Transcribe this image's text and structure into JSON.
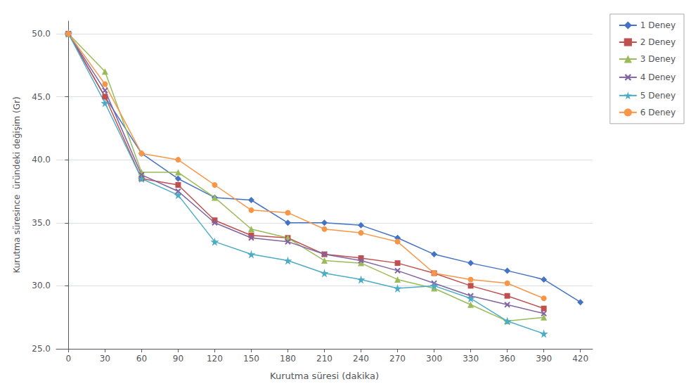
{
  "chart_data": {
    "type": "line",
    "xlabel": "Kurutma süresi (dakika)",
    "ylabel": "Kurutma süresince  üründeki değişim (Gr)",
    "x": [
      0,
      30,
      60,
      90,
      120,
      150,
      180,
      210,
      240,
      270,
      300,
      330,
      360,
      390,
      420
    ],
    "series": [
      {
        "name": "1 Deney",
        "color": "#4472C4",
        "marker": "diamond",
        "values": [
          50.0,
          45.0,
          40.5,
          38.5,
          37.0,
          36.8,
          35.0,
          35.0,
          34.8,
          33.8,
          32.5,
          31.8,
          31.2,
          30.5,
          28.7
        ]
      },
      {
        "name": "2 Deney",
        "color": "#C0504D",
        "marker": "square",
        "values": [
          50.0,
          45.0,
          38.5,
          38.0,
          35.2,
          34.0,
          33.8,
          32.5,
          32.2,
          31.8,
          31.0,
          30.0,
          29.2,
          28.2,
          null
        ]
      },
      {
        "name": "3 Deney",
        "color": "#9BBB59",
        "marker": "triangle",
        "values": [
          50.0,
          47.0,
          39.0,
          39.0,
          37.0,
          34.5,
          33.8,
          32.0,
          31.8,
          30.5,
          29.8,
          28.5,
          27.2,
          27.5,
          null
        ]
      },
      {
        "name": "4 Deney",
        "color": "#8064A2",
        "marker": "x",
        "values": [
          50.0,
          45.5,
          38.8,
          37.5,
          35.0,
          33.8,
          33.5,
          32.5,
          32.0,
          31.2,
          30.2,
          29.2,
          28.5,
          27.8,
          null
        ]
      },
      {
        "name": "5 Deney",
        "color": "#4BACC6",
        "marker": "star",
        "values": [
          50.0,
          44.5,
          38.5,
          37.2,
          33.5,
          32.5,
          32.0,
          31.0,
          30.5,
          29.8,
          30.0,
          29.0,
          27.2,
          26.2,
          null
        ]
      },
      {
        "name": "6 Deney",
        "color": "#F79646",
        "marker": "circle",
        "values": [
          50.0,
          46.0,
          40.5,
          40.0,
          38.0,
          36.0,
          35.8,
          34.5,
          34.2,
          33.5,
          31.0,
          30.5,
          30.2,
          29.0,
          null
        ]
      }
    ],
    "xlim": [
      -10,
      430
    ],
    "xticks": [
      0,
      30,
      60,
      90,
      120,
      150,
      180,
      210,
      240,
      270,
      300,
      330,
      360,
      390,
      420
    ],
    "ylim": [
      25.0,
      51.0
    ],
    "yticks": [
      {
        "value": 25.0,
        "label": "25.0"
      },
      {
        "value": 30.0,
        "label": "30.0"
      },
      {
        "value": 35.0,
        "label": "35.0"
      },
      {
        "value": 40.0,
        "label": "40.0"
      },
      {
        "value": 45.0,
        "label": "45.0"
      },
      {
        "value": 50.0,
        "label": "50.0"
      }
    ],
    "grid": true,
    "legend": "right"
  }
}
